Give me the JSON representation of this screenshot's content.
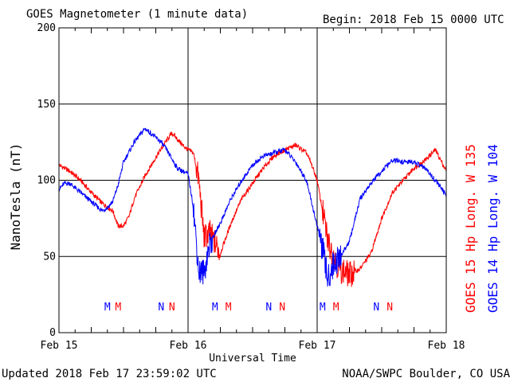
{
  "title": "GOES Magnetometer (1 minute data)",
  "begin": "Begin:  2018 Feb 15 0000 UTC",
  "updated": "Updated 2018 Feb 17 23:59:02 UTC",
  "credit": "NOAA/SWPC Boulder, CO USA",
  "chart_data": {
    "type": "line",
    "title": "GOES Magnetometer (1 minute data)",
    "xlabel": "Universal Time",
    "ylabel": "NanoTesla (nT)",
    "xlim": [
      "2018-02-15 00:00",
      "2018-02-18 00:00"
    ],
    "ylim": [
      0,
      200
    ],
    "yticks": [
      0,
      50,
      100,
      150,
      200
    ],
    "xticks": [
      "Feb 15",
      "Feb 16",
      "Feb 17",
      "Feb 18"
    ],
    "grid": true,
    "legend_position": "right, vertical",
    "series": [
      {
        "name": "GOES 15 Hp  Long. W 135",
        "color": "#ff0000",
        "x": [
          0,
          2,
          4,
          6,
          8,
          10,
          11,
          12,
          13,
          14,
          16,
          18,
          20,
          21,
          22,
          23,
          24,
          25,
          26,
          27,
          28,
          30,
          32,
          34,
          36,
          38,
          40,
          42,
          44,
          46,
          47,
          48,
          50,
          52,
          54,
          56,
          58,
          60,
          62,
          64,
          66,
          68,
          70,
          72
        ],
        "y": [
          110,
          106,
          100,
          92,
          85,
          80,
          70,
          70,
          76,
          88,
          103,
          115,
          126,
          131,
          127,
          123,
          120,
          118,
          100,
          62,
          66,
          52,
          72,
          88,
          98,
          108,
          116,
          120,
          123,
          118,
          110,
          100,
          60,
          42,
          38,
          42,
          52,
          75,
          92,
          100,
          108,
          113,
          120,
          106
        ]
      },
      {
        "name": "GOES 14 Hp  Long. W 104",
        "color": "#0000ff",
        "x": [
          0,
          1,
          2,
          4,
          6,
          8,
          9,
          10,
          11,
          12,
          14,
          16,
          18,
          19,
          20,
          22,
          24,
          25,
          26,
          27,
          28,
          30,
          32,
          34,
          36,
          38,
          40,
          42,
          44,
          46,
          48,
          49,
          50,
          51,
          52,
          54,
          56,
          58,
          60,
          62,
          64,
          66,
          68,
          70,
          72
        ],
        "y": [
          94,
          98,
          98,
          92,
          86,
          80,
          82,
          86,
          97,
          112,
          125,
          134,
          128,
          125,
          120,
          108,
          104,
          82,
          40,
          40,
          58,
          72,
          88,
          100,
          110,
          116,
          118,
          120,
          112,
          100,
          70,
          55,
          35,
          45,
          48,
          60,
          88,
          98,
          106,
          113,
          112,
          112,
          108,
          100,
          90
        ]
      }
    ],
    "annotations": [
      {
        "text": "M",
        "x": 9,
        "series": "GOES 14 Hp  Long. W 104",
        "color": "#0000ff"
      },
      {
        "text": "M",
        "x": 11,
        "series": "GOES 15 Hp  Long. W 135",
        "color": "#ff0000"
      },
      {
        "text": "N",
        "x": 19,
        "series": "GOES 14 Hp  Long. W 104",
        "color": "#0000ff"
      },
      {
        "text": "N",
        "x": 21,
        "series": "GOES 15 Hp  Long. W 135",
        "color": "#ff0000"
      },
      {
        "text": "M",
        "x": 29,
        "series": "GOES 14 Hp  Long. W 104",
        "color": "#0000ff"
      },
      {
        "text": "M",
        "x": 31.5,
        "series": "GOES 15 Hp  Long. W 135",
        "color": "#ff0000"
      },
      {
        "text": "N",
        "x": 39,
        "series": "GOES 14 Hp  Long. W 104",
        "color": "#0000ff"
      },
      {
        "text": "N",
        "x": 41.5,
        "series": "GOES 15 Hp  Long. W 135",
        "color": "#ff0000"
      },
      {
        "text": "M",
        "x": 49,
        "series": "GOES 14 Hp  Long. W 104",
        "color": "#0000ff"
      },
      {
        "text": "M",
        "x": 51.5,
        "series": "GOES 15 Hp  Long. W 135",
        "color": "#ff0000"
      },
      {
        "text": "N",
        "x": 59,
        "series": "GOES 14 Hp  Long. W 104",
        "color": "#0000ff"
      },
      {
        "text": "N",
        "x": 61.5,
        "series": "GOES 15 Hp  Long. W 135",
        "color": "#ff0000"
      }
    ]
  }
}
